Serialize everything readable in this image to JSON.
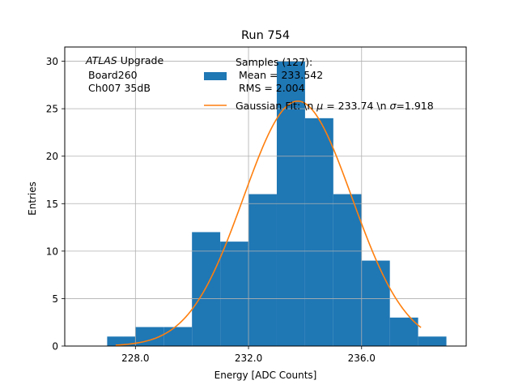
{
  "chart_data": {
    "type": "bar",
    "title": "Run 754",
    "xlabel": "Energy [ADC Counts]",
    "ylabel": "Entries",
    "xlim": [
      225.5,
      239.7
    ],
    "ylim": [
      0,
      31.5
    ],
    "grid": true,
    "x_ticks": [
      228,
      232,
      236
    ],
    "x_tick_labels": [
      "228.0",
      "232.0",
      "236.0"
    ],
    "y_ticks": [
      0,
      5,
      10,
      15,
      20,
      25,
      30
    ],
    "y_tick_labels": [
      "0",
      "5",
      "10",
      "15",
      "20",
      "25",
      "30"
    ],
    "annotation": {
      "italic": "ATLAS",
      "rest": " Upgrade",
      "lines": [
        "Board260",
        "Ch007 35dB"
      ]
    },
    "legend_placement": "top-right",
    "histogram": {
      "name_lines": [
        "Samples (127):",
        " Mean = 233.542",
        " RMS = 2.004"
      ],
      "color": "#1f77b4",
      "bins": [
        {
          "start": 227.0,
          "end": 228.0,
          "count": 1
        },
        {
          "start": 228.0,
          "end": 229.0,
          "count": 2
        },
        {
          "start": 229.0,
          "end": 230.0,
          "count": 2
        },
        {
          "start": 230.0,
          "end": 231.0,
          "count": 12
        },
        {
          "start": 231.0,
          "end": 232.0,
          "count": 11
        },
        {
          "start": 232.0,
          "end": 233.0,
          "count": 16
        },
        {
          "start": 233.0,
          "end": 234.0,
          "count": 30
        },
        {
          "start": 234.0,
          "end": 235.0,
          "count": 24
        },
        {
          "start": 235.0,
          "end": 236.0,
          "count": 16
        },
        {
          "start": 236.0,
          "end": 237.0,
          "count": 9
        },
        {
          "start": 237.0,
          "end": 238.0,
          "count": 3
        },
        {
          "start": 238.0,
          "end": 239.0,
          "count": 1
        }
      ]
    },
    "fit": {
      "name": "Gaussian Fit: \\n $\\mu$ = 233.74 \\n $\\sigma$=1.918",
      "label_prefix": "Gaussian Fit: \\n ",
      "label_mu": "μ",
      "label_mid": " = 233.74 \\n ",
      "label_sigma": "σ",
      "label_suffix": "=1.918",
      "color": "#ff7f0e",
      "mu": 233.74,
      "sigma": 1.918,
      "amplitude": 25.8,
      "x_range": [
        227.3,
        238.1
      ]
    }
  }
}
